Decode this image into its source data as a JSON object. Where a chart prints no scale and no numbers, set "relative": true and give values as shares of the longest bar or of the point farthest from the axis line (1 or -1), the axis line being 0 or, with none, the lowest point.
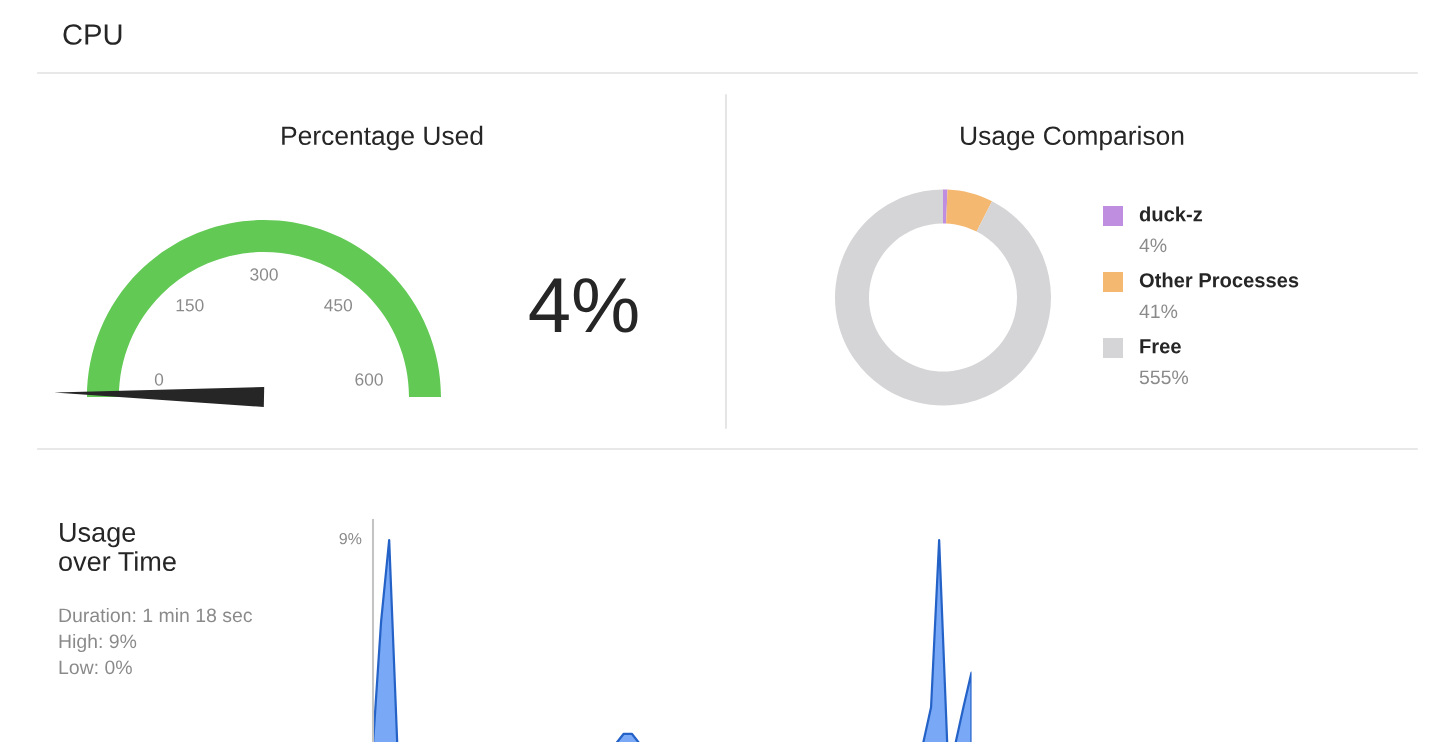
{
  "chart_data": [
    {
      "type": "other",
      "title": "Percentage Used",
      "annotations": [
        "CPU",
        "0",
        "150",
        "300",
        "450",
        "600"
      ],
      "values": [
        4
      ],
      "value_labels": [
        "4%"
      ],
      "colors": [
        "#262626"
      ]
    },
    {
      "type": "donut",
      "title": "Usage Comparison",
      "categories": [
        "duck-z",
        "Other Processes",
        "Free"
      ],
      "values": [
        4,
        41,
        555
      ],
      "colors": [
        "#c08ee0",
        "#f5b870",
        "#d5d5d7"
      ],
      "value_labels": [
        "4%",
        "41%",
        "555%"
      ],
      "legend": "right"
    },
    {
      "type": "area",
      "relative": true,
      "categories": [
        null,
        null,
        null,
        null,
        null,
        null,
        null,
        null,
        null,
        null,
        null,
        null,
        null,
        null,
        null,
        null,
        null,
        null,
        null,
        null,
        null,
        null,
        null,
        null,
        null,
        null,
        null,
        null,
        null,
        null,
        null,
        null,
        null,
        null,
        null,
        null,
        null,
        null,
        null,
        null,
        null,
        null,
        null,
        null,
        null,
        null,
        null,
        null,
        null,
        null,
        null,
        null,
        null,
        null,
        null,
        null,
        null,
        null,
        null,
        null,
        null,
        null,
        null,
        null,
        null,
        null,
        null,
        null,
        null,
        null,
        null,
        null,
        null,
        null,
        null
      ],
      "series": [
        {
          "color": "#78a8f6",
          "values": [
            0,
            0.6,
            1,
            0,
            0,
            0,
            0,
            0,
            0,
            0,
            0,
            0,
            0,
            0,
            0,
            0,
            0,
            0,
            0,
            0,
            0,
            0,
            0,
            0,
            0,
            0,
            0,
            0,
            0,
            0,
            0,
            0.05,
            0.05,
            0,
            0,
            0,
            0,
            0,
            0,
            0,
            0,
            0,
            0,
            0,
            0,
            0,
            0,
            0,
            0,
            0,
            0,
            0,
            0,
            0,
            0,
            0,
            0,
            0,
            0,
            0,
            0,
            0,
            0,
            0,
            0,
            0,
            0,
            0,
            0,
            0.18,
            1,
            0,
            0,
            0.18,
            0.35
          ]
        }
      ],
      "annotations": [
        "Usage\nover Time",
        "9%",
        "Duration: 1 min 18 sec",
        "High: 9%",
        "Low: 0%"
      ]
    }
  ]
}
